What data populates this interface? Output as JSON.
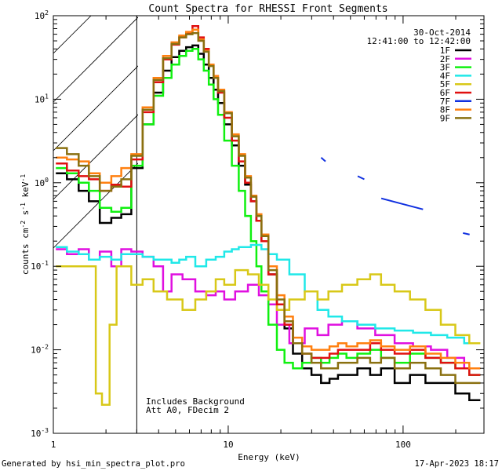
{
  "chart_data": {
    "type": "line",
    "title": "Count Spectra for RHESSI Front Segments",
    "xlabel": "Energy (keV)",
    "ylabel": "counts cm-2 s-1 keV-1",
    "ylabel_parts": {
      "base": "counts cm",
      "exp1": "-2",
      "mid1": " s",
      "exp2": "-1",
      "mid2": " keV",
      "exp3": "-1"
    },
    "x_scale": "log",
    "y_scale": "log",
    "xlim": [
      1,
      290
    ],
    "ylim": [
      0.001,
      100
    ],
    "x_ticks": [
      {
        "value": 1,
        "label": "1"
      },
      {
        "value": 10,
        "label": "10"
      },
      {
        "value": 100,
        "label": "100"
      }
    ],
    "y_ticks": [
      {
        "value": 0.001,
        "base": "10",
        "exp": "-3"
      },
      {
        "value": 0.01,
        "base": "10",
        "exp": "-2"
      },
      {
        "value": 0.1,
        "base": "10",
        "exp": "-1"
      },
      {
        "value": 1,
        "base": "10",
        "exp": "0"
      },
      {
        "value": 10,
        "base": "10",
        "exp": "1"
      },
      {
        "value": 100,
        "base": "10",
        "exp": "2"
      }
    ],
    "date": "30-Oct-2014",
    "time_range": "12:41:00 to 12:42:00",
    "annotation_lines": [
      "Includes Background",
      "Att A0, FDecim 2"
    ],
    "excluded_region_max_keV": 3,
    "series": [
      {
        "name": "1F",
        "color": "#000000",
        "x": [
          1.1,
          1.3,
          1.5,
          1.7,
          2.0,
          2.3,
          2.6,
          3.0,
          3.5,
          4.0,
          4.5,
          5.0,
          5.5,
          6.0,
          6.5,
          7.0,
          7.5,
          8.0,
          8.5,
          9.0,
          10.0,
          11.0,
          12.0,
          13.0,
          14.0,
          15.0,
          16.0,
          18.0,
          20.0,
          22.0,
          25.0,
          28.0,
          32.0,
          36.0,
          40.0,
          45.0,
          50.0,
          60.0,
          70.0,
          80.0,
          100.0,
          120.0,
          150.0,
          180.0,
          220.0,
          260.0
        ],
        "y": [
          1.3,
          1.1,
          0.8,
          0.6,
          0.33,
          0.38,
          0.42,
          1.5,
          5,
          12,
          22,
          32,
          38,
          42,
          44,
          35,
          26,
          18,
          13,
          9,
          5,
          2.8,
          1.6,
          0.95,
          0.6,
          0.35,
          0.2,
          0.08,
          0.035,
          0.018,
          0.009,
          0.006,
          0.005,
          0.004,
          0.0045,
          0.005,
          0.005,
          0.006,
          0.005,
          0.006,
          0.004,
          0.005,
          0.004,
          0.004,
          0.003,
          0.0025
        ]
      },
      {
        "name": "2F",
        "color": "#e010e0",
        "x": [
          1.1,
          1.3,
          1.5,
          1.7,
          2.0,
          2.3,
          2.6,
          3.0,
          3.5,
          4.0,
          4.5,
          5.0,
          6.0,
          7.0,
          8.0,
          9.0,
          10.0,
          12.0,
          14.0,
          16.0,
          18.0,
          20.0,
          25.0,
          30.0,
          35.0,
          40.0,
          50.0,
          60.0,
          80.0,
          100.0,
          130.0,
          160.0,
          200.0,
          250.0
        ],
        "y": [
          0.16,
          0.14,
          0.16,
          0.12,
          0.15,
          0.1,
          0.16,
          0.15,
          0.13,
          0.1,
          0.05,
          0.08,
          0.07,
          0.05,
          0.045,
          0.05,
          0.04,
          0.05,
          0.06,
          0.045,
          0.035,
          0.02,
          0.012,
          0.018,
          0.015,
          0.02,
          0.022,
          0.018,
          0.015,
          0.012,
          0.011,
          0.01,
          0.008,
          0.006
        ]
      },
      {
        "name": "3F",
        "color": "#10f010",
        "x": [
          1.1,
          1.3,
          1.5,
          1.7,
          2.0,
          2.3,
          2.6,
          3.0,
          3.5,
          4.0,
          4.5,
          5.0,
          5.5,
          6.0,
          6.5,
          7.0,
          7.5,
          8.0,
          8.5,
          9.0,
          10.0,
          11.0,
          12.0,
          13.0,
          14.0,
          15.0,
          16.0,
          18.0,
          20.0,
          22.0,
          25.0,
          28.0,
          32.0,
          36.0,
          40.0,
          45.0,
          50.0,
          60.0,
          70.0,
          80.0,
          100.0,
          120.0,
          150.0,
          180.0,
          220.0,
          260.0
        ],
        "y": [
          1.5,
          1.3,
          1.0,
          0.8,
          0.5,
          0.45,
          0.5,
          1.6,
          5,
          11,
          18,
          26,
          33,
          38,
          40,
          30,
          22,
          15,
          10,
          6.5,
          3.2,
          1.6,
          0.8,
          0.4,
          0.2,
          0.1,
          0.05,
          0.02,
          0.01,
          0.007,
          0.006,
          0.007,
          0.008,
          0.007,
          0.008,
          0.009,
          0.008,
          0.009,
          0.01,
          0.008,
          0.007,
          0.009,
          0.008,
          0.007,
          0.006,
          0.005
        ]
      },
      {
        "name": "4F",
        "color": "#20e8e8",
        "x": [
          1.1,
          1.3,
          1.5,
          1.7,
          2.0,
          2.3,
          2.6,
          3.0,
          3.5,
          4.0,
          4.5,
          5.0,
          5.5,
          6.0,
          7.0,
          8.0,
          9.0,
          10.0,
          11.0,
          12.0,
          13.0,
          14.0,
          15.0,
          16.0,
          18.0,
          20.0,
          25.0,
          30.0,
          35.0,
          40.0,
          50.0,
          60.0,
          80.0,
          100.0,
          130.0,
          160.0,
          200.0,
          250.0
        ],
        "y": [
          0.17,
          0.15,
          0.14,
          0.12,
          0.13,
          0.12,
          0.14,
          0.14,
          0.13,
          0.12,
          0.12,
          0.11,
          0.12,
          0.13,
          0.1,
          0.12,
          0.13,
          0.15,
          0.16,
          0.17,
          0.17,
          0.18,
          0.18,
          0.16,
          0.14,
          0.12,
          0.08,
          0.05,
          0.03,
          0.025,
          0.022,
          0.02,
          0.018,
          0.017,
          0.016,
          0.015,
          0.014,
          0.012
        ]
      },
      {
        "name": "5F",
        "color": "#d8c818",
        "x": [
          1.1,
          1.3,
          1.5,
          1.7,
          1.8,
          2.0,
          2.2,
          2.4,
          2.6,
          3.0,
          3.5,
          4.0,
          5.0,
          6.0,
          7.0,
          8.0,
          9.0,
          10.0,
          12.0,
          14.0,
          16.0,
          18.0,
          20.0,
          25.0,
          30.0,
          35.0,
          40.0,
          50.0,
          60.0,
          70.0,
          80.0,
          100.0,
          120.0,
          150.0,
          180.0,
          220.0,
          260.0
        ],
        "y": [
          0.1,
          0.1,
          0.1,
          0.1,
          0.003,
          0.0022,
          0.02,
          0.1,
          0.1,
          0.06,
          0.07,
          0.05,
          0.04,
          0.03,
          0.04,
          0.05,
          0.07,
          0.06,
          0.09,
          0.08,
          0.06,
          0.04,
          0.03,
          0.04,
          0.05,
          0.04,
          0.05,
          0.06,
          0.07,
          0.08,
          0.06,
          0.05,
          0.04,
          0.03,
          0.02,
          0.015,
          0.012
        ]
      },
      {
        "name": "6F",
        "color": "#e01010",
        "x": [
          1.1,
          1.3,
          1.5,
          1.7,
          2.0,
          2.3,
          2.6,
          3.0,
          3.5,
          4.0,
          4.5,
          5.0,
          5.5,
          6.0,
          6.5,
          7.0,
          7.5,
          8.0,
          8.5,
          9.0,
          10.0,
          11.0,
          12.0,
          13.0,
          14.0,
          15.0,
          16.0,
          18.0,
          20.0,
          22.0,
          25.0,
          28.0,
          32.0,
          36.0,
          40.0,
          45.0,
          50.0,
          60.0,
          70.0,
          80.0,
          100.0,
          120.0,
          150.0,
          180.0,
          220.0,
          260.0
        ],
        "y": [
          1.7,
          1.4,
          1.2,
          1.1,
          0.8,
          0.95,
          0.9,
          1.9,
          7,
          16,
          30,
          45,
          55,
          62,
          75,
          55,
          40,
          26,
          18,
          12,
          6,
          3.2,
          1.8,
          1.0,
          0.6,
          0.35,
          0.2,
          0.08,
          0.035,
          0.02,
          0.012,
          0.009,
          0.008,
          0.008,
          0.009,
          0.01,
          0.01,
          0.01,
          0.012,
          0.01,
          0.009,
          0.01,
          0.008,
          0.007,
          0.006,
          0.005
        ]
      },
      {
        "name": "7F",
        "color": "#1030e0",
        "x": [
          34,
          36,
          55,
          60,
          75,
          130,
          220,
          240
        ],
        "y": [
          2.0,
          1.8,
          1.2,
          1.1,
          0.65,
          0.48,
          0.25,
          0.24
        ]
      },
      {
        "name": "8F",
        "color": "#ff8010",
        "x": [
          1.1,
          1.3,
          1.5,
          1.7,
          2.0,
          2.3,
          2.6,
          3.0,
          3.5,
          4.0,
          4.5,
          5.0,
          5.5,
          6.0,
          6.5,
          7.0,
          7.5,
          8.0,
          8.5,
          9.0,
          10.0,
          11.0,
          12.0,
          13.0,
          14.0,
          15.0,
          16.0,
          18.0,
          20.0,
          22.0,
          25.0,
          28.0,
          32.0,
          36.0,
          40.0,
          45.0,
          50.0,
          60.0,
          70.0,
          80.0,
          100.0,
          120.0,
          150.0,
          180.0,
          220.0,
          260.0
        ],
        "y": [
          2.0,
          1.9,
          1.8,
          1.3,
          1.0,
          1.2,
          1.5,
          2.2,
          8,
          18,
          33,
          48,
          58,
          64,
          68,
          52,
          38,
          26,
          19,
          13,
          7,
          3.8,
          2.2,
          1.2,
          0.7,
          0.42,
          0.24,
          0.1,
          0.045,
          0.025,
          0.014,
          0.011,
          0.01,
          0.01,
          0.011,
          0.012,
          0.011,
          0.012,
          0.013,
          0.011,
          0.01,
          0.011,
          0.009,
          0.008,
          0.007,
          0.006
        ]
      },
      {
        "name": "9F",
        "color": "#8a7010",
        "x": [
          1.1,
          1.3,
          1.5,
          1.7,
          2.0,
          2.3,
          2.6,
          3.0,
          3.5,
          4.0,
          4.5,
          5.0,
          5.5,
          6.0,
          6.5,
          7.0,
          7.5,
          8.0,
          8.5,
          9.0,
          10.0,
          11.0,
          12.0,
          13.0,
          14.0,
          15.0,
          16.0,
          18.0,
          20.0,
          22.0,
          25.0,
          28.0,
          32.0,
          36.0,
          40.0,
          45.0,
          50.0,
          60.0,
          70.0,
          80.0,
          100.0,
          120.0,
          150.0,
          180.0,
          220.0,
          260.0
        ],
        "y": [
          2.6,
          2.2,
          1.6,
          1.2,
          0.8,
          0.9,
          1.1,
          2.1,
          7.5,
          17,
          31,
          46,
          55,
          60,
          62,
          50,
          37,
          25,
          18,
          12.5,
          6.8,
          3.6,
          2.1,
          1.15,
          0.68,
          0.4,
          0.23,
          0.09,
          0.04,
          0.022,
          0.012,
          0.009,
          0.007,
          0.006,
          0.006,
          0.007,
          0.007,
          0.008,
          0.007,
          0.008,
          0.006,
          0.007,
          0.006,
          0.005,
          0.004,
          0.004
        ]
      }
    ]
  },
  "footer": {
    "generated_by": "Generated by hsi_min_spectra_plot.pro",
    "timestamp": "17-Apr-2023 18:17"
  }
}
